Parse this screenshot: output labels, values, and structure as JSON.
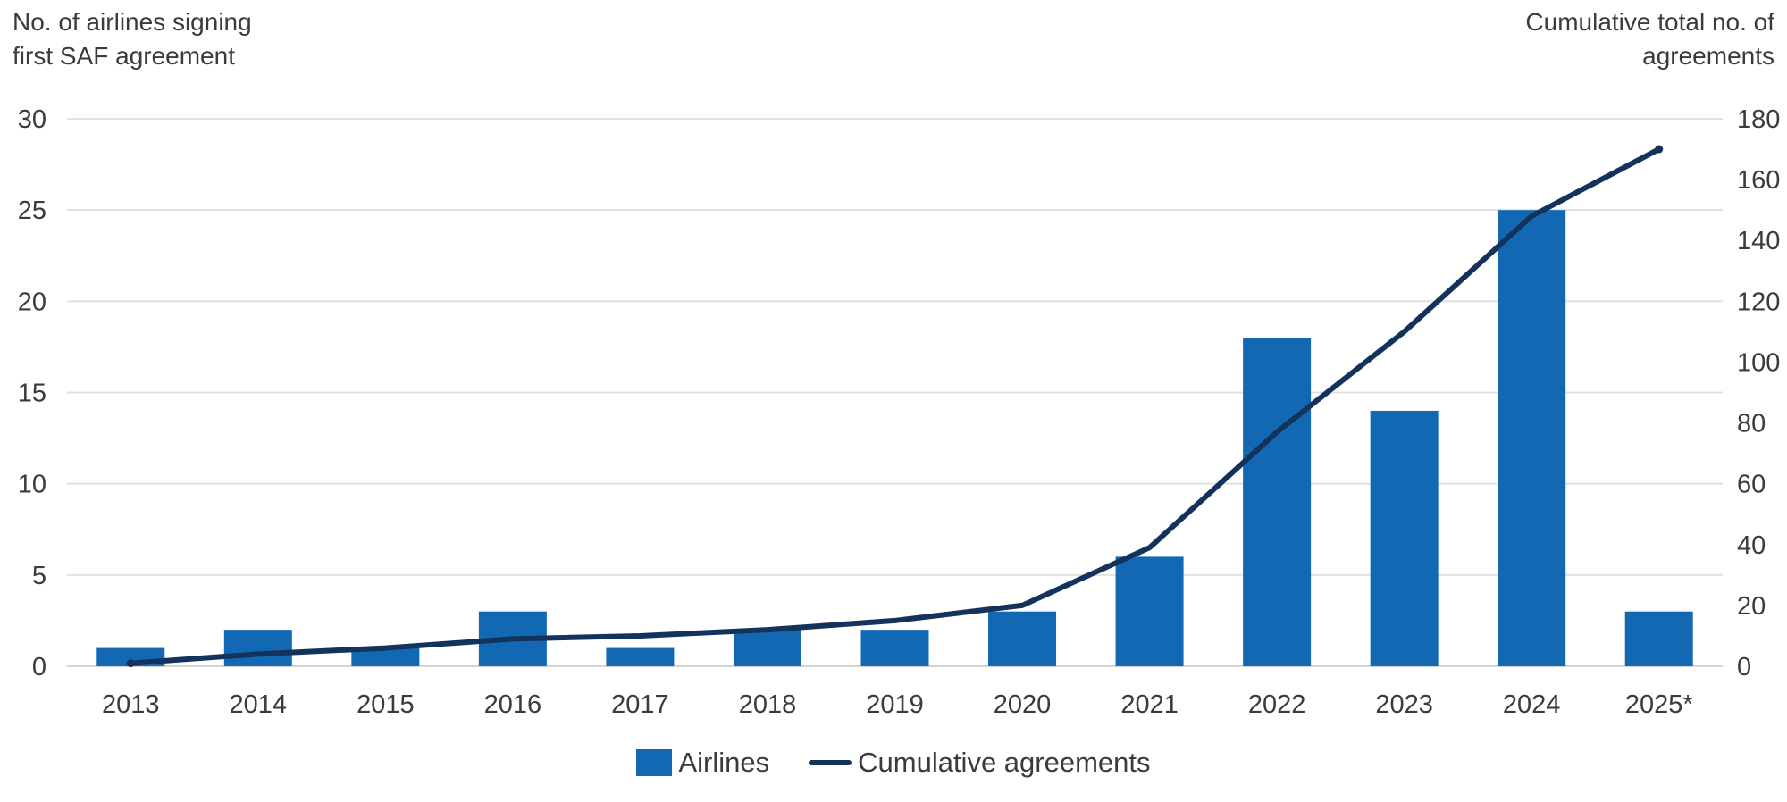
{
  "header": {
    "left_axis_title": "No. of airlines signing\nfirst SAF agreement",
    "right_axis_title": "Cumulative total no. of\nagreements"
  },
  "legend": {
    "items": [
      {
        "label": "Airlines",
        "swatch": "square",
        "color": "#1268B2"
      },
      {
        "label": "Cumulative agreements",
        "swatch": "line",
        "color": "#14335C"
      }
    ]
  },
  "chart_data": {
    "type": "bar+line",
    "categories": [
      "2013",
      "2014",
      "2015",
      "2016",
      "2017",
      "2018",
      "2019",
      "2020",
      "2021",
      "2022",
      "2023",
      "2024",
      "2025*"
    ],
    "series": [
      {
        "name": "Airlines",
        "type": "bar",
        "axis": "left",
        "color": "#1268B2",
        "values": [
          1,
          2,
          1,
          3,
          1,
          2,
          2,
          3,
          6,
          18,
          14,
          25,
          3
        ]
      },
      {
        "name": "Cumulative agreements",
        "type": "line",
        "axis": "right",
        "color": "#14335C",
        "values": [
          1,
          4,
          6,
          9,
          10,
          12,
          15,
          20,
          39,
          77,
          110,
          148,
          170
        ]
      }
    ],
    "left_axis": {
      "title": "No. of airlines signing first SAF agreement",
      "range": [
        0,
        30
      ],
      "ticks": [
        0,
        5,
        10,
        15,
        20,
        25,
        30
      ]
    },
    "right_axis": {
      "title": "Cumulative total no. of agreements",
      "range": [
        0,
        180
      ],
      "ticks": [
        0,
        20,
        40,
        60,
        80,
        100,
        120,
        140,
        160,
        180
      ]
    },
    "grid": true,
    "gridline_color": "#E1E1E1",
    "baseline_color": "#D5D5D5",
    "text_color": "#3b3b3b",
    "legend_position": "bottom"
  }
}
